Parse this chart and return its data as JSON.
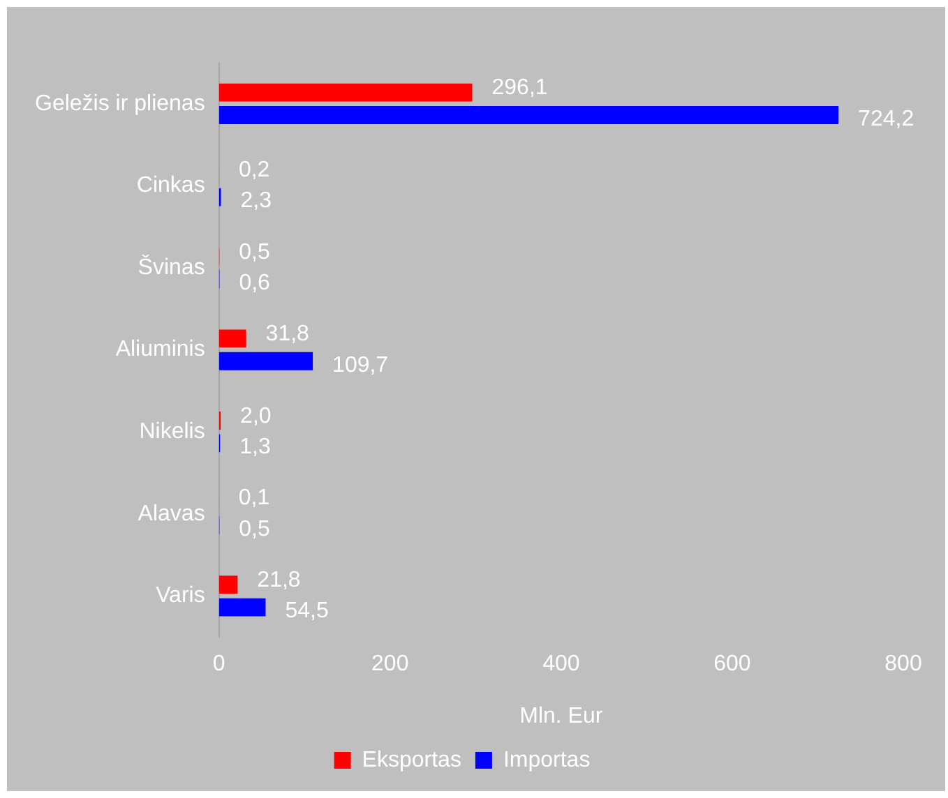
{
  "chart_data": {
    "type": "bar",
    "orientation": "horizontal",
    "xlabel": "Mln. Eur",
    "categories": [
      "Geležis ir plienas",
      "Cinkas",
      "Švinas",
      "Aliuminis",
      "Nikelis",
      "Alavas",
      "Varis"
    ],
    "series": [
      {
        "name": "Eksportas",
        "color": "#ff0000",
        "values": [
          296.1,
          0.2,
          0.5,
          31.8,
          2.0,
          0.1,
          21.8
        ],
        "value_labels": [
          "296,1",
          "0,2",
          "0,5",
          "31,8",
          "2,0",
          "0,1",
          "21,8"
        ]
      },
      {
        "name": "Importas",
        "color": "#0000ff",
        "values": [
          724.2,
          2.3,
          0.6,
          109.7,
          1.3,
          0.5,
          54.5
        ],
        "value_labels": [
          "724,2",
          "2,3",
          "0,6",
          "109,7",
          "1,3",
          "0,5",
          "54,5"
        ]
      }
    ],
    "xlim": [
      0,
      800
    ],
    "xticks": [
      0,
      200,
      400,
      600,
      800
    ],
    "grid": false,
    "legend": "bottom"
  }
}
